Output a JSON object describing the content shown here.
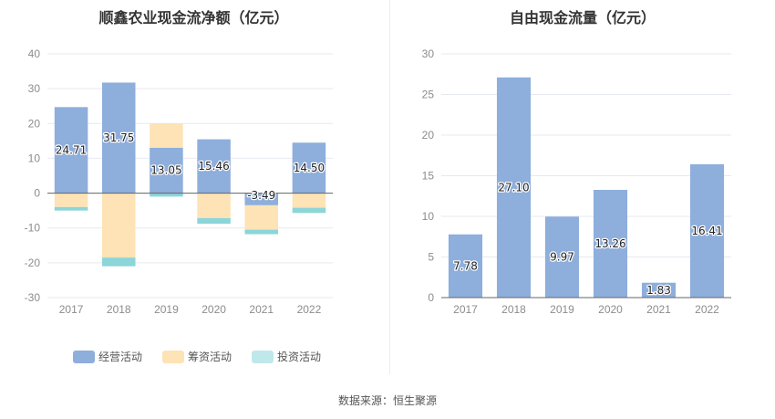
{
  "left_chart": {
    "title": "顺鑫农业现金流净额（亿元）"
  },
  "right_chart": {
    "title": "自由现金流量（亿元）"
  },
  "legend": [
    {
      "label": "经营活动",
      "color": "#8eaedc"
    },
    {
      "label": "筹资活动",
      "color": "#fde3b5"
    },
    {
      "label": "投资活动",
      "color": "#bfe8ea"
    }
  ],
  "source": "数据来源：恒生聚源",
  "chart_data": [
    {
      "type": "bar",
      "stacked": true,
      "title": "顺鑫农业现金流净额（亿元）",
      "categories": [
        "2017",
        "2018",
        "2019",
        "2020",
        "2021",
        "2022"
      ],
      "ylim": [
        -30,
        40
      ],
      "yticks": [
        40,
        30,
        20,
        10,
        0,
        -10,
        -20,
        -30
      ],
      "grid": true,
      "legend_position": "bottom",
      "series": [
        {
          "name": "经营活动",
          "color": "#8eaedc",
          "values": [
            24.71,
            31.75,
            13.05,
            15.46,
            -3.49,
            14.5
          ],
          "labels": [
            "24.71",
            "31.75",
            "13.05",
            "15.46",
            "-3.49",
            "14.50"
          ]
        },
        {
          "name": "筹资活动",
          "color": "#fde3b5",
          "values": [
            -4.0,
            -18.5,
            7.0,
            -7.2,
            -7.0,
            -4.2
          ]
        },
        {
          "name": "投资活动",
          "color": "#8cd5d8",
          "values": [
            -1.0,
            -2.5,
            -1.0,
            -1.6,
            -1.3,
            -1.5
          ]
        }
      ]
    },
    {
      "type": "bar",
      "title": "自由现金流量（亿元）",
      "categories": [
        "2017",
        "2018",
        "2019",
        "2020",
        "2021",
        "2022"
      ],
      "ylim": [
        0,
        30
      ],
      "yticks": [
        30,
        25,
        20,
        15,
        10,
        5,
        0
      ],
      "grid": true,
      "series": [
        {
          "color": "#8eaedc",
          "values": [
            7.78,
            27.1,
            9.97,
            13.26,
            1.83,
            16.41
          ],
          "labels": [
            "7.78",
            "27.10",
            "9.97",
            "13.26",
            "1.83",
            "16.41"
          ]
        }
      ]
    }
  ]
}
